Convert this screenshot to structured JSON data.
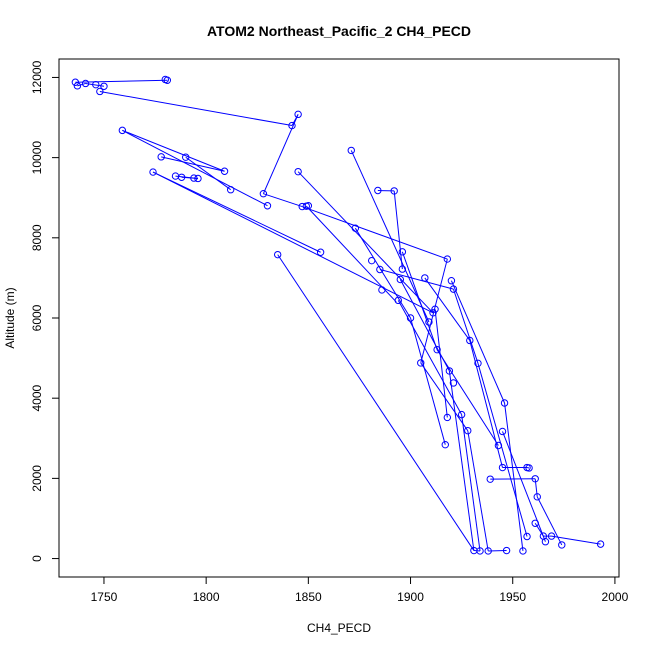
{
  "chart_data": {
    "type": "line",
    "title": "ATOM2 Northeast_Pacific_2 CH4_PECD",
    "xlabel": "CH4_PECD",
    "ylabel": "Altitude (m)",
    "xlim": [
      1728,
      2002
    ],
    "ylim": [
      -460,
      12460
    ],
    "xticks": [
      1750,
      1800,
      1850,
      1900,
      1950,
      2000
    ],
    "yticks": [
      0,
      2000,
      4000,
      6000,
      8000,
      10000,
      12000
    ],
    "grid": false,
    "legend": "none",
    "series_color": "#0000ff",
    "markers": "open-circle",
    "points": [
      [
        1736,
        11880
      ],
      [
        1737,
        11790
      ],
      [
        1741,
        11850
      ],
      [
        1746,
        11820
      ],
      [
        1750,
        11780
      ],
      [
        1780,
        11950
      ],
      [
        1781,
        11930
      ],
      [
        1748,
        11650
      ],
      [
        1842,
        10800
      ],
      [
        1845,
        11080
      ],
      [
        1828,
        9100
      ],
      [
        1759,
        10680
      ],
      [
        1830,
        8800
      ],
      [
        1790,
        10010
      ],
      [
        1778,
        10020
      ],
      [
        1809,
        9660
      ],
      [
        1794,
        9490
      ],
      [
        1785,
        9540
      ],
      [
        1788,
        9510
      ],
      [
        1796,
        9480
      ],
      [
        1812,
        9200
      ],
      [
        1774,
        9640
      ],
      [
        1856,
        7640
      ],
      [
        1871,
        10180
      ],
      [
        1911,
        6130
      ],
      [
        1845,
        9650
      ],
      [
        1881,
        7430
      ],
      [
        1884,
        9180
      ],
      [
        1892,
        9170
      ],
      [
        1918,
        7470
      ],
      [
        1847,
        8780
      ],
      [
        1850,
        8800
      ],
      [
        1849,
        8790
      ],
      [
        1873,
        8240
      ],
      [
        1909,
        5900
      ],
      [
        1885,
        7210
      ],
      [
        1895,
        6960
      ],
      [
        1896,
        7650
      ],
      [
        1896,
        7220
      ],
      [
        1886,
        6700
      ],
      [
        1894,
        6440
      ],
      [
        1907,
        7000
      ],
      [
        1920,
        6930
      ],
      [
        1921,
        6720
      ],
      [
        1900,
        6000
      ],
      [
        1912,
        6220
      ],
      [
        1905,
        4880
      ],
      [
        1913,
        5210
      ],
      [
        1919,
        4680
      ],
      [
        1929,
        5440
      ],
      [
        1933,
        4870
      ],
      [
        1921,
        4380
      ],
      [
        1946,
        3880
      ],
      [
        1925,
        3590
      ],
      [
        1918,
        3520
      ],
      [
        1928,
        3190
      ],
      [
        1945,
        3170
      ],
      [
        1917,
        2840
      ],
      [
        1943,
        2820
      ],
      [
        1945,
        2270
      ],
      [
        1957,
        2270
      ],
      [
        1958,
        2260
      ],
      [
        1939,
        1980
      ],
      [
        1961,
        1990
      ],
      [
        1962,
        1540
      ],
      [
        1835,
        7580
      ],
      [
        1931,
        200
      ],
      [
        1934,
        190
      ],
      [
        1938,
        190
      ],
      [
        1947,
        200
      ],
      [
        1955,
        190
      ],
      [
        1957,
        550
      ],
      [
        1961,
        880
      ],
      [
        1965,
        560
      ],
      [
        1966,
        420
      ],
      [
        1969,
        560
      ],
      [
        1974,
        340
      ],
      [
        1993,
        360
      ]
    ],
    "segments": [
      [
        1736,
        11880,
        1781,
        11930
      ],
      [
        1737,
        11790,
        1741,
        11850
      ],
      [
        1741,
        11850,
        1750,
        11780
      ],
      [
        1748,
        11650,
        1842,
        10800
      ],
      [
        1842,
        10800,
        1845,
        11080
      ],
      [
        1845,
        11080,
        1828,
        9100
      ],
      [
        1759,
        10680,
        1830,
        8800
      ],
      [
        1759,
        10680,
        1809,
        9660
      ],
      [
        1778,
        10020,
        1809,
        9660
      ],
      [
        1790,
        10010,
        1812,
        9200
      ],
      [
        1774,
        9640,
        1856,
        7640
      ],
      [
        1785,
        9540,
        1796,
        9480
      ],
      [
        1788,
        9510,
        1796,
        9480
      ],
      [
        1774,
        9640,
        1911,
        6130
      ],
      [
        1828,
        9100,
        1847,
        8780
      ],
      [
        1871,
        10180,
        1909,
        5900
      ],
      [
        1845,
        9650,
        1911,
        6130
      ],
      [
        1847,
        8780,
        1918,
        7470
      ],
      [
        1918,
        7470,
        1905,
        4880
      ],
      [
        1873,
        8240,
        1900,
        6000
      ],
      [
        1884,
        9180,
        1892,
        9170
      ],
      [
        1892,
        9170,
        1896,
        7220
      ],
      [
        1896,
        7650,
        1913,
        5210
      ],
      [
        1885,
        7210,
        1921,
        6720
      ],
      [
        1895,
        6960,
        1919,
        4680
      ],
      [
        1907,
        7000,
        1929,
        5440
      ],
      [
        1920,
        6930,
        1946,
        3880
      ],
      [
        1921,
        6720,
        1933,
        4870
      ],
      [
        1894,
        6440,
        1925,
        3590
      ],
      [
        1900,
        6000,
        1917,
        2840
      ],
      [
        1912,
        6220,
        1918,
        3520
      ],
      [
        1905,
        4880,
        1928,
        3190
      ],
      [
        1913,
        5210,
        1943,
        2820
      ],
      [
        1929,
        5440,
        1945,
        2270
      ],
      [
        1919,
        4680,
        1931,
        200
      ],
      [
        1933,
        4870,
        1957,
        550
      ],
      [
        1946,
        3880,
        1955,
        190
      ],
      [
        1925,
        3590,
        1934,
        190
      ],
      [
        1928,
        3190,
        1938,
        190
      ],
      [
        1945,
        3170,
        1966,
        420
      ],
      [
        1945,
        2270,
        1957,
        2270
      ],
      [
        1957,
        2270,
        1958,
        2260
      ],
      [
        1939,
        1980,
        1961,
        1990
      ],
      [
        1961,
        1990,
        1962,
        1540
      ],
      [
        1962,
        1540,
        1974,
        340
      ],
      [
        1835,
        7580,
        1931,
        200
      ],
      [
        1931,
        200,
        1934,
        190
      ],
      [
        1938,
        190,
        1947,
        200
      ],
      [
        1961,
        880,
        1965,
        560
      ],
      [
        1965,
        560,
        1969,
        560
      ],
      [
        1969,
        560,
        1993,
        360
      ],
      [
        1849,
        8790,
        1893,
        6400
      ]
    ]
  }
}
